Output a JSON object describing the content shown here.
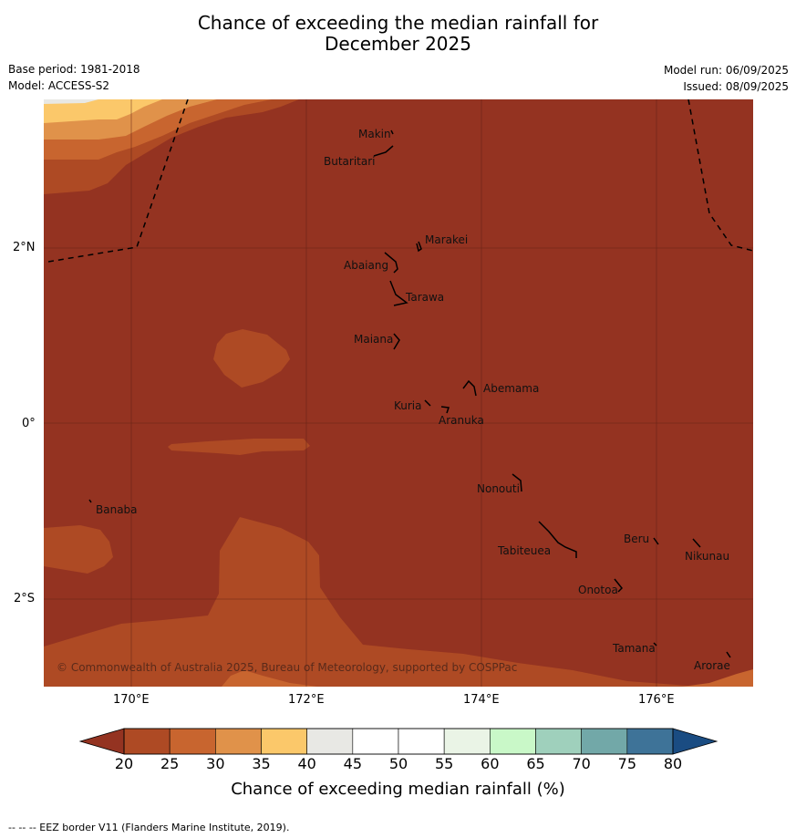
{
  "title_line1": "Chance of exceeding the median rainfall for",
  "title_line2": "December 2025",
  "base_period": "Base period: 1981-2018",
  "model": "Model: ACCESS-S2",
  "model_run": "Model run: 06/09/2025",
  "issued": "Issued: 08/09/2025",
  "lat_labels": [
    "2°N",
    "0°",
    "2°S"
  ],
  "lon_labels": [
    "170°E",
    "172°E",
    "174°E",
    "176°E"
  ],
  "places": [
    "Makin",
    "Butaritari",
    "Marakei",
    "Abaiang",
    "Tarawa",
    "Maiana",
    "Abemama",
    "Kuria",
    "Aranuka",
    "Nonouti",
    "Banaba",
    "Beru",
    "Nikunau",
    "Tabiteuea",
    "Onotoa",
    "Tamana",
    "Arorae"
  ],
  "copyright": "© Commonwealth of Australia 2025, Bureau of Meteorology, supported by COSPPac",
  "colorbar": {
    "title": "Chance of exceeding median rainfall (%)",
    "ticks": [
      "20",
      "25",
      "30",
      "35",
      "40",
      "45",
      "50",
      "55",
      "60",
      "65",
      "70",
      "75",
      "80"
    ],
    "colors": [
      "#ae4a24",
      "#c8652f",
      "#e0924a",
      "#fbc86a",
      "#e8e8e4",
      "#ffffff",
      "#ffffff",
      "#eaf4e6",
      "#c9f8c8",
      "#9fd0bc",
      "#72a8a8",
      "#3e7398"
    ],
    "under_color": "#943321",
    "over_color": "#1a4c82"
  },
  "map_colors": {
    "below_20": "#943321",
    "c20_25": "#ae4a24",
    "c25_30": "#c8652f",
    "c30_35": "#e0924a",
    "c35_40": "#fbc86a",
    "c40_45": "#e8e8e4"
  },
  "footnote": "--  --  -- EEZ border V11 (Flanders Marine Institute, 2019)."
}
